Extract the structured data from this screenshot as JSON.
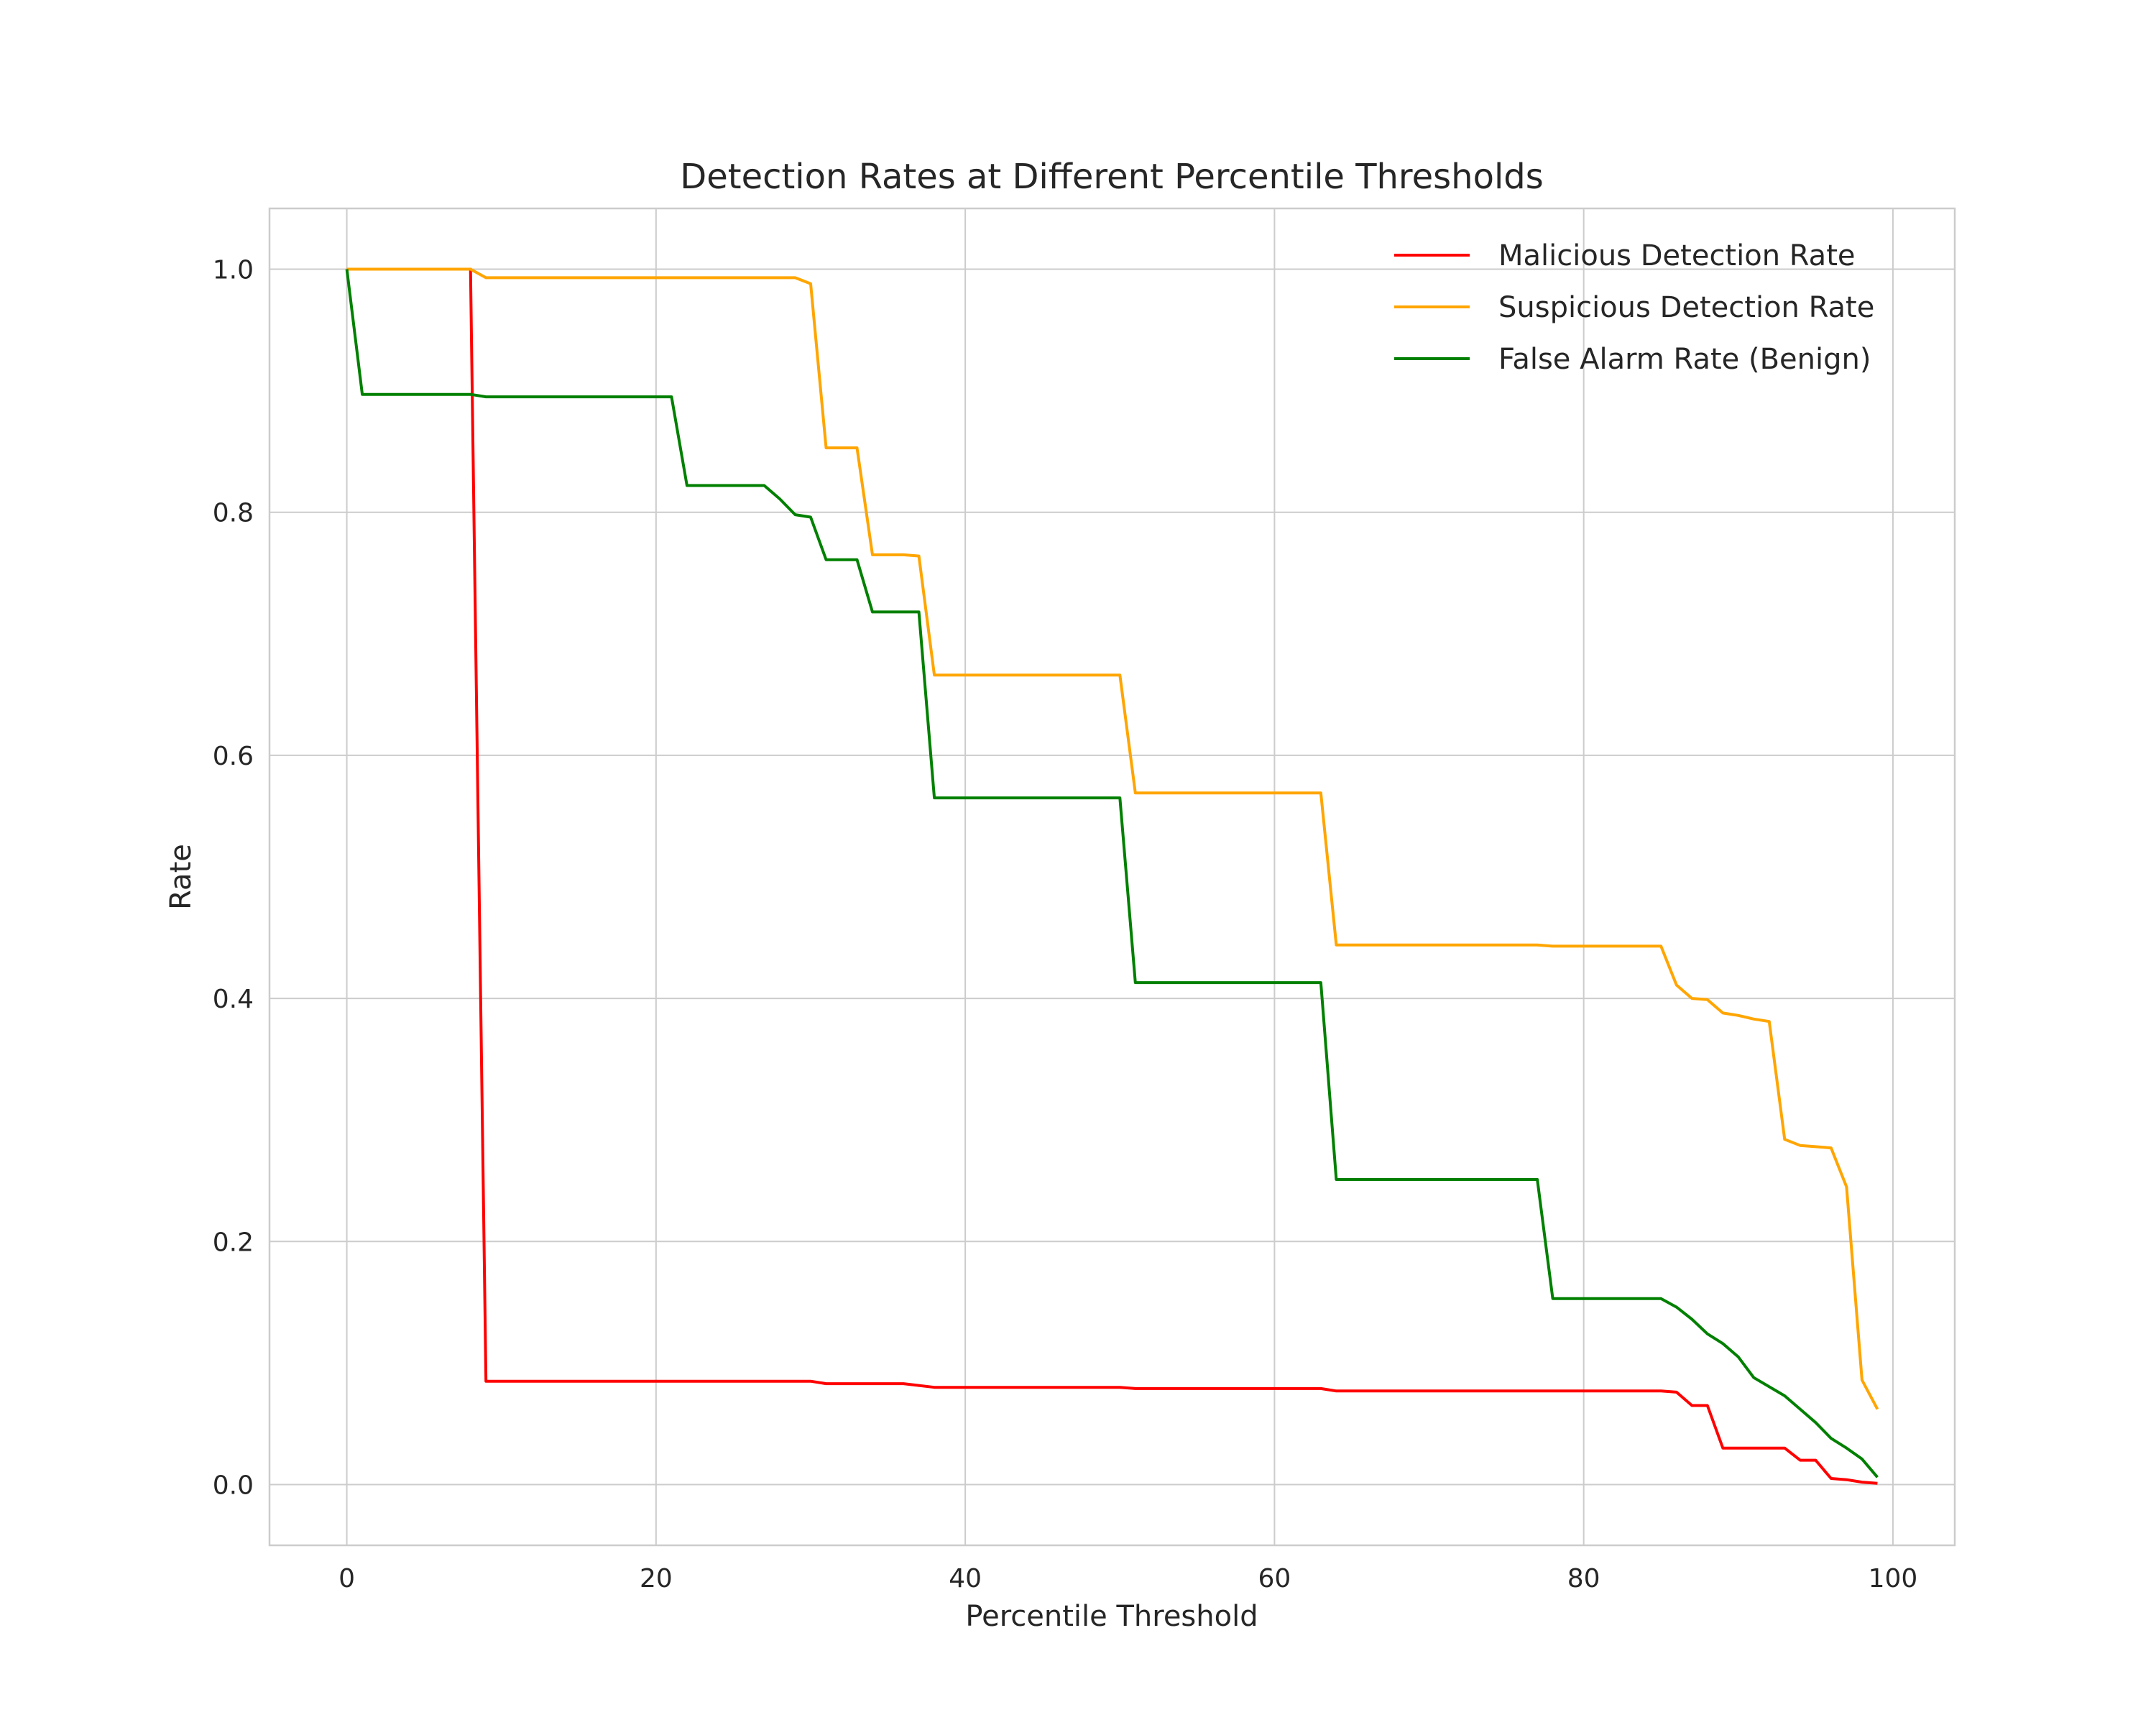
{
  "chart_data": {
    "type": "line",
    "title": "Detection Rates at Different Percentile Thresholds",
    "xlabel": "Percentile Threshold",
    "ylabel": "Rate",
    "xlim": [
      -5,
      104
    ],
    "ylim": [
      -0.05,
      1.05
    ],
    "xticks": [
      0,
      20,
      40,
      60,
      80,
      100
    ],
    "yticks": [
      0.0,
      0.2,
      0.4,
      0.6,
      0.8,
      1.0
    ],
    "grid": true,
    "legend_position": "top-right",
    "series": [
      {
        "name": "Malicious Detection Rate",
        "color": "#ff0000",
        "x": [
          0,
          8,
          9,
          30,
          31,
          36,
          38,
          50,
          51,
          63,
          64,
          85,
          86,
          87,
          88,
          89,
          90,
          91,
          92,
          93,
          94,
          95,
          96,
          97,
          98,
          99
        ],
        "y": [
          1.0,
          1.0,
          0.085,
          0.085,
          0.083,
          0.083,
          0.08,
          0.08,
          0.079,
          0.079,
          0.077,
          0.077,
          0.076,
          0.065,
          0.065,
          0.03,
          0.03,
          0.03,
          0.03,
          0.03,
          0.02,
          0.02,
          0.005,
          0.004,
          0.002,
          0.001
        ]
      },
      {
        "name": "Suspicious Detection Rate",
        "color": "#ffa500",
        "x": [
          0,
          8,
          9,
          29,
          30,
          31,
          33,
          34,
          36,
          37,
          38,
          50,
          51,
          63,
          64,
          77,
          78,
          85,
          86,
          87,
          88,
          89,
          90,
          91,
          92,
          93,
          94,
          96,
          97,
          98,
          99
        ],
        "y": [
          1.0,
          1.0,
          0.993,
          0.993,
          0.988,
          0.853,
          0.853,
          0.765,
          0.765,
          0.764,
          0.666,
          0.666,
          0.569,
          0.569,
          0.444,
          0.444,
          0.443,
          0.443,
          0.411,
          0.4,
          0.399,
          0.388,
          0.386,
          0.383,
          0.381,
          0.284,
          0.279,
          0.277,
          0.245,
          0.086,
          0.062
        ]
      },
      {
        "name": "False Alarm Rate (Benign)",
        "color": "#008000",
        "x": [
          0,
          1,
          8,
          9,
          21,
          22,
          27,
          28,
          29,
          30,
          31,
          33,
          34,
          37,
          38,
          50,
          51,
          63,
          64,
          77,
          78,
          85,
          86,
          87,
          88,
          89,
          90,
          91,
          93,
          94,
          95,
          96,
          97,
          98,
          99
        ],
        "y": [
          1.0,
          0.897,
          0.897,
          0.895,
          0.895,
          0.822,
          0.822,
          0.811,
          0.798,
          0.796,
          0.761,
          0.761,
          0.718,
          0.718,
          0.565,
          0.565,
          0.413,
          0.413,
          0.251,
          0.251,
          0.153,
          0.153,
          0.146,
          0.136,
          0.124,
          0.116,
          0.105,
          0.088,
          0.073,
          0.062,
          0.051,
          0.038,
          0.03,
          0.021,
          0.006
        ]
      }
    ]
  }
}
